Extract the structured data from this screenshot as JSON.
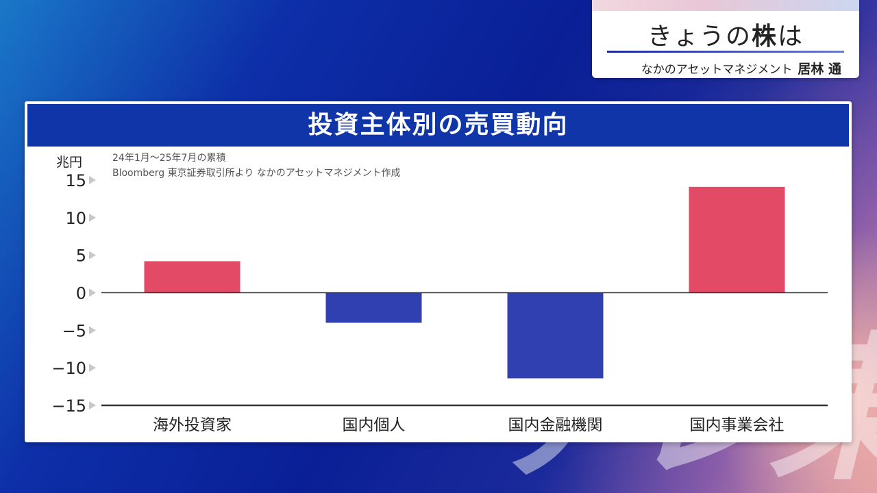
{
  "corner": {
    "title_prefix": "きょうの",
    "title_bold": "株",
    "title_suffix": "は",
    "org": "なかのアセットマネジメント",
    "person": "居林 通"
  },
  "panel": {
    "title": "投資主体別の売買動向",
    "unit": "兆円",
    "note_period": "24年1月〜25年7月の累積",
    "note_source": "Bloomberg 東京証券取引所より なかのアセットマネジメント作成"
  },
  "chart_data": {
    "type": "bar",
    "title": "投資主体別の売買動向",
    "ylabel": "兆円",
    "categories": [
      "海外投資家",
      "国内個人",
      "国内金融機関",
      "国内事業会社"
    ],
    "values": [
      4.2,
      -4.0,
      -11.4,
      14.1
    ],
    "ylim": [
      -15,
      15
    ],
    "yticks": [
      15,
      10,
      5,
      0,
      -5,
      -10,
      -15
    ],
    "ytick_labels": [
      "15",
      "10",
      "5",
      "0",
      "−5",
      "−10",
      "−15"
    ],
    "colors": {
      "positive": "#e34a66",
      "negative": "#3040b0"
    },
    "grid": false
  },
  "watermark": "テレ東"
}
